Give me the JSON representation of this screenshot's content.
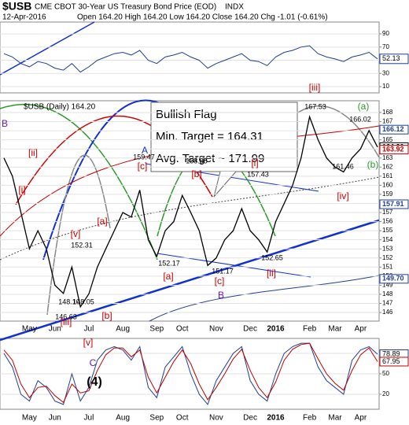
{
  "header": {
    "symbol": "$USB",
    "title": "CME CBOT 30-Year US Treasury Bond Price (EOD)",
    "exchange": "INDX",
    "date": "12-Apr-2016",
    "quote": "Open 164.20  High 164.20  Low 164.20  Close 164.20  Chg -1.01 (-0.61%)"
  },
  "chart_data": [
    {
      "type": "line",
      "panel": "rsi",
      "categories": [
        null,
        null,
        null,
        "May",
        null,
        null,
        "Jun",
        null,
        null,
        null,
        "Jul",
        null,
        null,
        null,
        "Aug",
        null,
        null,
        null,
        "Sep",
        null,
        null,
        "Oct",
        null,
        null,
        null,
        "Nov",
        null,
        null,
        null,
        "Dec",
        null,
        null,
        "2016",
        null,
        null,
        null,
        "Feb",
        null,
        null,
        "Mar",
        null,
        null,
        "Apr",
        null,
        null
      ],
      "values": [
        60,
        55,
        45,
        40,
        48,
        45,
        38,
        35,
        45,
        32,
        40,
        50,
        55,
        60,
        62,
        58,
        65,
        50,
        45,
        55,
        58,
        62,
        55,
        50,
        38,
        45,
        50,
        55,
        60,
        50,
        48,
        42,
        55,
        62,
        65,
        70,
        72,
        60,
        55,
        52,
        48,
        55,
        58,
        62,
        52.13
      ],
      "value_labels": {
        "44": "52.13"
      },
      "color": "#1f3f8f",
      "ylim": [
        0.5,
        108
      ],
      "yticks": [
        10,
        30,
        50,
        70,
        90
      ],
      "grid": true
    },
    {
      "type": "line",
      "panel": "price",
      "categories": [
        null,
        null,
        null,
        "May",
        null,
        null,
        "Jun",
        null,
        null,
        null,
        "Jul",
        null,
        null,
        null,
        "Aug",
        null,
        null,
        null,
        "Sep",
        null,
        null,
        "Oct",
        null,
        null,
        null,
        "Nov",
        null,
        null,
        null,
        "Dec",
        null,
        null,
        "2016",
        null,
        null,
        null,
        "Feb",
        null,
        null,
        "Mar",
        null,
        null,
        "Apr",
        null,
        null
      ],
      "series": [
        {
          "name": "$USB (Daily) 164.20",
          "color": "#000000",
          "values": [
            163,
            161,
            157,
            153,
            155,
            153,
            149,
            148.1,
            151,
            146.63,
            148.05,
            151,
            153,
            155,
            157,
            156.5,
            159.47,
            154,
            152.17,
            155,
            156,
            158.88,
            157,
            155,
            151.17,
            152,
            154,
            155,
            157.43,
            155,
            154,
            152.65,
            156,
            158,
            160,
            163,
            167.53,
            165,
            163,
            162,
            161.46,
            163,
            164,
            166.02,
            164.2
          ]
        }
      ],
      "ylim": [
        145.05,
        169.3
      ],
      "yticks": [
        146,
        147,
        148,
        149,
        150,
        151,
        152,
        153,
        154,
        155,
        156,
        157,
        158,
        159,
        160,
        161,
        162,
        163,
        164,
        165,
        166,
        167,
        168
      ],
      "grid": true,
      "right_labels": [
        {
          "value": 166.12,
          "label": "166.12",
          "color": "#1f3f8f"
        },
        {
          "value": 164.2,
          "label": "164.20",
          "color": "#000000"
        },
        {
          "value": 163.92,
          "label": "163.92",
          "color": "#c00000"
        },
        {
          "value": 157.91,
          "label": "157.91",
          "color": "#1f3f8f"
        },
        {
          "value": 149.7,
          "label": "149.70",
          "color": "#1f3f8f"
        }
      ],
      "callout": [
        "Bullish Flag",
        "Min. Target = 164.31",
        "Avg. Target ~ 171.99"
      ],
      "annotations": [
        "[iii]",
        "(a)",
        "166.02",
        "167.53",
        "(b)",
        "161.46",
        "[iv]",
        "[i]",
        "157.43",
        "[ii]",
        "152.65",
        "[b]",
        "158.88",
        "[c]",
        "159.47",
        "A",
        "[a]",
        "[a]",
        "152.17",
        "151.17",
        "[c]",
        "B",
        "[v]",
        "152.31",
        "148.10",
        "146.63",
        "148.05",
        "[iii]",
        "[b]",
        "[ii]",
        "[i]",
        "B"
      ]
    },
    {
      "type": "line",
      "panel": "stoch",
      "categories": [
        null,
        null,
        null,
        "May",
        null,
        null,
        "Jun",
        null,
        null,
        null,
        "Jul",
        null,
        null,
        null,
        "Aug",
        null,
        null,
        null,
        "Sep",
        null,
        null,
        "Oct",
        null,
        null,
        null,
        "Nov",
        null,
        null,
        null,
        "Dec",
        null,
        null,
        "2016",
        null,
        null,
        null,
        "Feb",
        null,
        null,
        "Mar",
        null,
        null,
        "Apr",
        null,
        null
      ],
      "series": [
        {
          "color": "#1f3f8f",
          "values": [
            80,
            60,
            20,
            10,
            40,
            30,
            10,
            5,
            50,
            10,
            30,
            70,
            85,
            90,
            85,
            70,
            90,
            30,
            15,
            60,
            75,
            90,
            50,
            20,
            5,
            40,
            60,
            80,
            90,
            40,
            20,
            10,
            50,
            80,
            90,
            95,
            95,
            60,
            40,
            30,
            20,
            70,
            85,
            90,
            78.89
          ]
        },
        {
          "color": "#c00000",
          "values": [
            85,
            70,
            35,
            15,
            30,
            32,
            18,
            8,
            35,
            22,
            25,
            55,
            78,
            88,
            88,
            75,
            85,
            45,
            22,
            45,
            68,
            85,
            65,
            35,
            12,
            30,
            50,
            72,
            86,
            55,
            30,
            15,
            38,
            70,
            86,
            93,
            95,
            72,
            50,
            36,
            26,
            55,
            78,
            88,
            67.95
          ]
        }
      ],
      "value_labels": [
        "78.89",
        "67.95"
      ],
      "ylim": [
        -2,
        102
      ],
      "yticks": [
        20,
        50,
        80
      ],
      "grid": true,
      "annotations": [
        "[v]",
        "C",
        "(4)"
      ]
    }
  ]
}
